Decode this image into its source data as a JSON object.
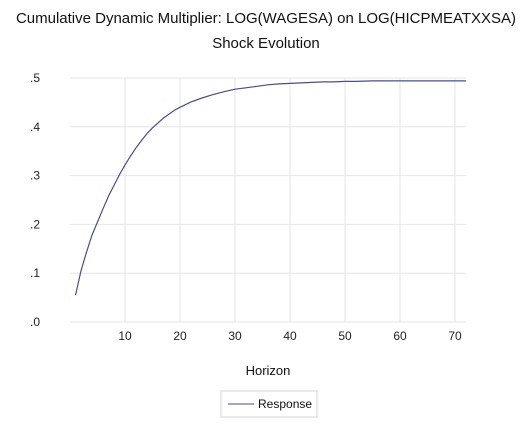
{
  "chart_data": {
    "type": "line",
    "title": "Cumulative Dynamic Multiplier: LOG(WAGESA) on LOG(HICPMEATXXSA)",
    "subtitle": "Shock Evolution",
    "xlabel": "Horizon",
    "ylabel": "",
    "xlim": [
      0,
      72
    ],
    "ylim": [
      0,
      0.5
    ],
    "x_ticks": [
      10,
      20,
      30,
      40,
      50,
      60,
      70
    ],
    "y_ticks": [
      0.0,
      0.1,
      0.2,
      0.3,
      0.4,
      0.5
    ],
    "x_tick_labels": [
      "10",
      "20",
      "30",
      "40",
      "50",
      "60",
      "70"
    ],
    "y_tick_labels": [
      ".0",
      ".1",
      ".2",
      ".3",
      ".4",
      ".5"
    ],
    "grid": true,
    "legend_position": "bottom-center",
    "series": [
      {
        "name": "Response",
        "color": "#4b4b8f",
        "x": [
          1,
          2,
          3,
          4,
          5,
          6,
          7,
          8,
          9,
          10,
          11,
          12,
          13,
          14,
          15,
          16,
          17,
          18,
          19,
          20,
          22,
          24,
          26,
          28,
          30,
          32,
          34,
          36,
          38,
          40,
          42,
          44,
          46,
          48,
          50,
          52,
          55,
          60,
          65,
          70,
          72
        ],
        "y": [
          0.055,
          0.105,
          0.143,
          0.178,
          0.205,
          0.232,
          0.258,
          0.28,
          0.302,
          0.322,
          0.34,
          0.357,
          0.372,
          0.386,
          0.398,
          0.408,
          0.418,
          0.426,
          0.434,
          0.44,
          0.451,
          0.459,
          0.466,
          0.472,
          0.477,
          0.48,
          0.483,
          0.486,
          0.488,
          0.489,
          0.49,
          0.491,
          0.492,
          0.492,
          0.493,
          0.493,
          0.494,
          0.494,
          0.494,
          0.494,
          0.494
        ]
      }
    ]
  }
}
